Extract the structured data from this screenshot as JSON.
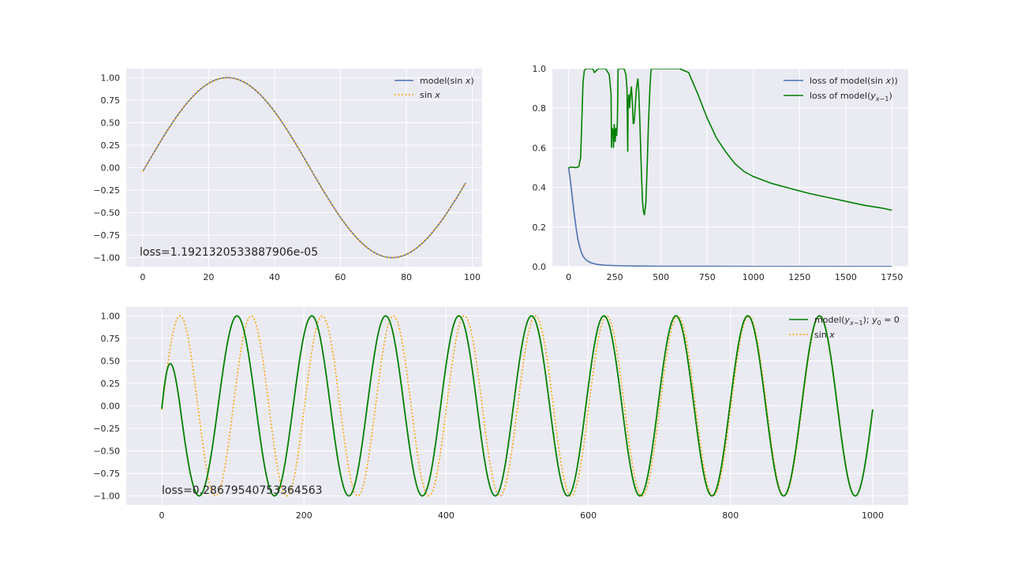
{
  "colors": {
    "model_blue": "#4c72b0",
    "model_green": "#008000",
    "target_orange": "#ffa500",
    "axes_bg": "#eaeaf2",
    "grid": "#ffffff"
  },
  "chart_data": [
    {
      "id": "fit",
      "type": "line",
      "xlim": [
        -5,
        103
      ],
      "ylim": [
        -1.1,
        1.1
      ],
      "xticks": [
        0,
        20,
        40,
        60,
        80,
        100
      ],
      "yticks": [
        -1.0,
        -0.75,
        -0.5,
        -0.25,
        0.0,
        0.25,
        0.5,
        0.75,
        1.0
      ],
      "xtick_labels": [
        "0",
        "20",
        "40",
        "60",
        "80",
        "100"
      ],
      "ytick_labels": [
        "−1.00",
        "−0.75",
        "−0.50",
        "−0.25",
        "0.00",
        "0.25",
        "0.50",
        "0.75",
        "1.00"
      ],
      "grid": true,
      "legend_position": "top-right",
      "series": [
        {
          "key": "model",
          "label": "model(sin x)",
          "color": "#4c72b0",
          "style": "solid",
          "formula": "sin(2*pi*(x-0.7)/100)",
          "x_range": [
            0,
            98
          ]
        },
        {
          "key": "target",
          "label": "sin x",
          "color": "#ffa500",
          "style": "dotted",
          "formula": "sin(2*pi*(x-0.7)/100)",
          "x_range": [
            0,
            98
          ]
        }
      ],
      "annotation": "loss=1.1921320533887906e-05"
    },
    {
      "id": "losses",
      "type": "line",
      "xlim": [
        -88,
        1838
      ],
      "ylim": [
        0.0,
        1.0
      ],
      "xticks": [
        0,
        250,
        500,
        750,
        1000,
        1250,
        1500,
        1750
      ],
      "yticks": [
        0.0,
        0.2,
        0.4,
        0.6,
        0.8,
        1.0
      ],
      "xtick_labels": [
        "0",
        "250",
        "500",
        "750",
        "1000",
        "1250",
        "1500",
        "1750"
      ],
      "ytick_labels": [
        "0.0",
        "0.2",
        "0.4",
        "0.6",
        "0.8",
        "1.0"
      ],
      "grid": true,
      "legend_position": "top-right",
      "series": [
        {
          "key": "loss_sin",
          "label": "loss of model(sin x))",
          "color": "#4c72b0",
          "style": "solid",
          "points": [
            [
              0,
              0.5
            ],
            [
              10,
              0.43
            ],
            [
              20,
              0.35
            ],
            [
              30,
              0.27
            ],
            [
              40,
              0.2
            ],
            [
              50,
              0.14
            ],
            [
              60,
              0.1
            ],
            [
              70,
              0.07
            ],
            [
              80,
              0.05
            ],
            [
              90,
              0.038
            ],
            [
              100,
              0.03
            ],
            [
              120,
              0.02
            ],
            [
              150,
              0.012
            ],
            [
              200,
              0.007
            ],
            [
              300,
              0.004
            ],
            [
              500,
              0.002
            ],
            [
              1000,
              0.001
            ],
            [
              1750,
              0.001
            ]
          ]
        },
        {
          "key": "loss_rec",
          "label": "loss of model(yx−1)",
          "color": "#008000",
          "style": "solid",
          "points": [
            [
              0,
              0.5
            ],
            [
              20,
              0.503
            ],
            [
              40,
              0.5
            ],
            [
              55,
              0.505
            ],
            [
              65,
              0.55
            ],
            [
              72,
              0.75
            ],
            [
              78,
              0.93
            ],
            [
              85,
              0.99
            ],
            [
              95,
              1.0
            ],
            [
              100,
              1.0
            ],
            [
              130,
              1.0
            ],
            [
              140,
              0.98
            ],
            [
              160,
              1.0
            ],
            [
              200,
              1.0
            ],
            [
              220,
              0.97
            ],
            [
              230,
              0.87
            ],
            [
              232,
              0.6
            ],
            [
              235,
              0.7
            ],
            [
              240,
              0.69
            ],
            [
              243,
              0.6
            ],
            [
              247,
              0.72
            ],
            [
              252,
              0.63
            ],
            [
              256,
              0.7
            ],
            [
              260,
              0.66
            ],
            [
              264,
              0.73
            ],
            [
              268,
              1.0
            ],
            [
              272,
              1.0
            ],
            [
              290,
              1.0
            ],
            [
              300,
              1.0
            ],
            [
              310,
              0.97
            ],
            [
              316,
              0.9
            ],
            [
              320,
              0.58
            ],
            [
              322,
              0.82
            ],
            [
              326,
              0.87
            ],
            [
              330,
              0.8
            ],
            [
              335,
              0.87
            ],
            [
              340,
              0.91
            ],
            [
              345,
              0.83
            ],
            [
              350,
              0.72
            ],
            [
              355,
              0.73
            ],
            [
              360,
              0.8
            ],
            [
              367,
              0.9
            ],
            [
              375,
              0.95
            ],
            [
              380,
              0.88
            ],
            [
              385,
              0.75
            ],
            [
              390,
              0.6
            ],
            [
              395,
              0.45
            ],
            [
              400,
              0.33
            ],
            [
              405,
              0.28
            ],
            [
              410,
              0.26
            ],
            [
              418,
              0.32
            ],
            [
              425,
              0.5
            ],
            [
              432,
              0.72
            ],
            [
              440,
              0.9
            ],
            [
              445,
              0.98
            ],
            [
              448,
              1.0
            ],
            [
              560,
              1.0
            ],
            [
              600,
              1.0
            ],
            [
              650,
              0.98
            ],
            [
              700,
              0.87
            ],
            [
              750,
              0.75
            ],
            [
              800,
              0.65
            ],
            [
              850,
              0.58
            ],
            [
              900,
              0.52
            ],
            [
              950,
              0.48
            ],
            [
              1000,
              0.455
            ],
            [
              1100,
              0.42
            ],
            [
              1200,
              0.395
            ],
            [
              1300,
              0.37
            ],
            [
              1400,
              0.35
            ],
            [
              1500,
              0.33
            ],
            [
              1600,
              0.31
            ],
            [
              1700,
              0.295
            ],
            [
              1750,
              0.285
            ]
          ]
        }
      ]
    },
    {
      "id": "recurrent",
      "type": "line",
      "xlim": [
        -50,
        1050
      ],
      "ylim": [
        -1.1,
        1.1
      ],
      "xticks": [
        0,
        200,
        400,
        600,
        800,
        1000
      ],
      "yticks": [
        -1.0,
        -0.75,
        -0.5,
        -0.25,
        0.0,
        0.25,
        0.5,
        0.75,
        1.0
      ],
      "xtick_labels": [
        "0",
        "200",
        "400",
        "600",
        "800",
        "1000"
      ],
      "ytick_labels": [
        "−1.00",
        "−0.75",
        "−0.50",
        "−0.25",
        "0.00",
        "0.25",
        "0.50",
        "0.75",
        "1.00"
      ],
      "grid": true,
      "legend_position": "top-right",
      "series": [
        {
          "key": "model_rec",
          "label": "model(yx−1); y0 = 0",
          "color": "#008000",
          "style": "solid",
          "formula": "recurrent_model(x)",
          "x_range": [
            0,
            1000
          ]
        },
        {
          "key": "target_rec",
          "label": "sin x",
          "color": "#ffa500",
          "style": "dotted",
          "formula": "sin(2*pi*(x-0.7)/100)",
          "x_range": [
            0,
            1000
          ]
        }
      ],
      "annotation": "loss=0.28679540753364563"
    }
  ]
}
